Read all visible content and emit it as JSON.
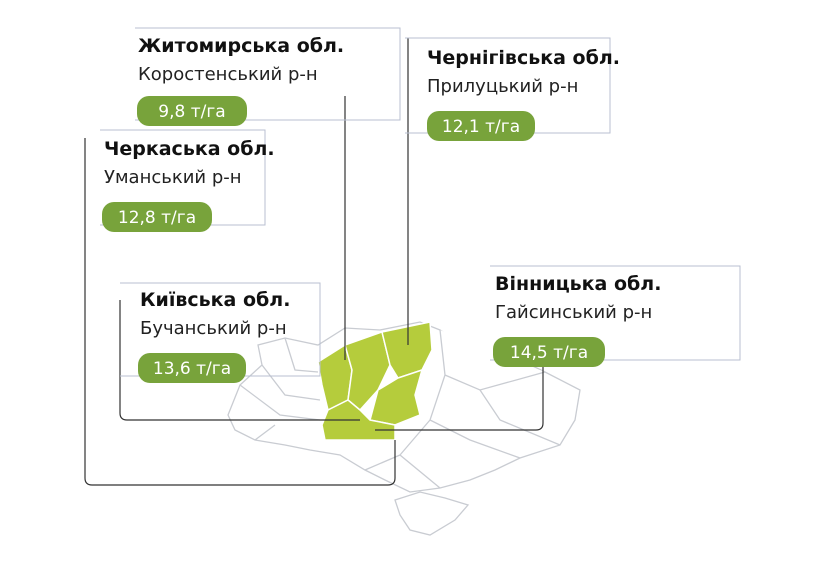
{
  "callouts": [
    {
      "region": "Житомирська обл.",
      "district": "Коростенський р-н",
      "yield": "9,8 т/га"
    },
    {
      "region": "Чернігівська обл.",
      "district": "Прилуцький р-н",
      "yield": "12,1 т/га"
    },
    {
      "region": "Черкаська обл.",
      "district": "Уманський р-н",
      "yield": "12,8 т/га"
    },
    {
      "region": "Вінницька обл.",
      "district": "Гайсинський р-н",
      "yield": "14,5 т/га"
    },
    {
      "region": "Київська обл.",
      "district": "Бучанський р-н",
      "yield": "13,6 т/га"
    }
  ]
}
